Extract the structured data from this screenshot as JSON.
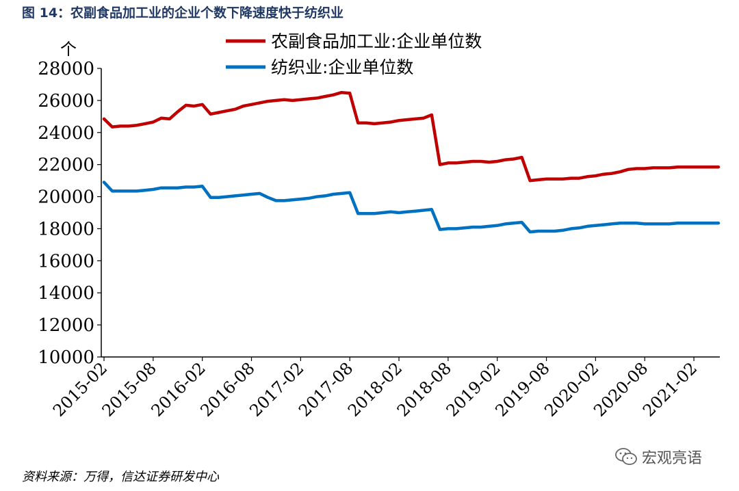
{
  "figure_title": "图 14：农副食品加工业的企业个数下降速度快于纺织业",
  "source_note": "资料来源：万得，信达证券研发中心",
  "watermark": {
    "icon": "wechat-icon",
    "text": "宏观亮语"
  },
  "colors": {
    "title": "#1f3864",
    "series_red": "#c00000",
    "series_blue": "#0070c0"
  },
  "chart_data": {
    "type": "line",
    "ylabel": "个",
    "ylim": [
      10000,
      28000
    ],
    "yticks": [
      10000,
      12000,
      14000,
      16000,
      18000,
      20000,
      22000,
      24000,
      26000,
      28000
    ],
    "ytick_labels": [
      "10000",
      "12000",
      "14000",
      "16000",
      "18000",
      "20000",
      "22000",
      "24000",
      "26000",
      "28000"
    ],
    "xticks": [
      "2015-02",
      "2015-08",
      "2016-02",
      "2016-08",
      "2017-02",
      "2017-08",
      "2018-02",
      "2018-08",
      "2019-02",
      "2019-08",
      "2020-02",
      "2020-08",
      "2021-02"
    ],
    "x_range": [
      "2015-02",
      "2021-05"
    ],
    "legend_position": "top",
    "grid": false,
    "series": [
      {
        "name": "农副食品加工业:企业单位数",
        "color": "#c00000",
        "x": [
          "2015-02",
          "2015-03",
          "2015-04",
          "2015-05",
          "2015-06",
          "2015-07",
          "2015-08",
          "2015-09",
          "2015-10",
          "2015-11",
          "2015-12",
          "2016-01",
          "2016-02",
          "2016-03",
          "2016-04",
          "2016-05",
          "2016-06",
          "2016-07",
          "2016-08",
          "2016-09",
          "2016-10",
          "2016-11",
          "2016-12",
          "2017-01",
          "2017-02",
          "2017-03",
          "2017-04",
          "2017-05",
          "2017-06",
          "2017-07",
          "2017-08",
          "2017-09",
          "2017-10",
          "2017-11",
          "2017-12",
          "2018-01",
          "2018-02",
          "2018-03",
          "2018-04",
          "2018-05",
          "2018-06",
          "2018-07",
          "2018-08",
          "2018-09",
          "2018-10",
          "2018-11",
          "2018-12",
          "2019-01",
          "2019-02",
          "2019-03",
          "2019-04",
          "2019-05",
          "2019-06",
          "2019-07",
          "2019-08",
          "2019-09",
          "2019-10",
          "2019-11",
          "2019-12",
          "2020-01",
          "2020-02",
          "2020-03",
          "2020-04",
          "2020-05",
          "2020-06",
          "2020-07",
          "2020-08",
          "2020-09",
          "2020-10",
          "2020-11",
          "2020-12",
          "2021-01",
          "2021-02",
          "2021-03",
          "2021-04",
          "2021-05"
        ],
        "y": [
          24850,
          24350,
          24400,
          24400,
          24450,
          24550,
          24650,
          24900,
          24850,
          25300,
          25700,
          25650,
          25750,
          25150,
          25250,
          25350,
          25450,
          25650,
          25750,
          25850,
          25950,
          26000,
          26050,
          26000,
          26050,
          26100,
          26150,
          26250,
          26350,
          26500,
          26450,
          24600,
          24600,
          24550,
          24600,
          24650,
          24750,
          24800,
          24850,
          24900,
          25100,
          22000,
          22100,
          22100,
          22150,
          22200,
          22200,
          22150,
          22200,
          22300,
          22350,
          22450,
          21000,
          21050,
          21100,
          21100,
          21100,
          21150,
          21150,
          21250,
          21300,
          21400,
          21450,
          21550,
          21700,
          21750,
          21750,
          21800,
          21800,
          21800,
          21850,
          21850,
          21850,
          21850,
          21850,
          21850
        ]
      },
      {
        "name": "纺织业:企业单位数",
        "color": "#0070c0",
        "x": [
          "2015-02",
          "2015-03",
          "2015-04",
          "2015-05",
          "2015-06",
          "2015-07",
          "2015-08",
          "2015-09",
          "2015-10",
          "2015-11",
          "2015-12",
          "2016-01",
          "2016-02",
          "2016-03",
          "2016-04",
          "2016-05",
          "2016-06",
          "2016-07",
          "2016-08",
          "2016-09",
          "2016-10",
          "2016-11",
          "2016-12",
          "2017-01",
          "2017-02",
          "2017-03",
          "2017-04",
          "2017-05",
          "2017-06",
          "2017-07",
          "2017-08",
          "2017-09",
          "2017-10",
          "2017-11",
          "2017-12",
          "2018-01",
          "2018-02",
          "2018-03",
          "2018-04",
          "2018-05",
          "2018-06",
          "2018-07",
          "2018-08",
          "2018-09",
          "2018-10",
          "2018-11",
          "2018-12",
          "2019-01",
          "2019-02",
          "2019-03",
          "2019-04",
          "2019-05",
          "2019-06",
          "2019-07",
          "2019-08",
          "2019-09",
          "2019-10",
          "2019-11",
          "2019-12",
          "2020-01",
          "2020-02",
          "2020-03",
          "2020-04",
          "2020-05",
          "2020-06",
          "2020-07",
          "2020-08",
          "2020-09",
          "2020-10",
          "2020-11",
          "2020-12",
          "2021-01",
          "2021-02",
          "2021-03",
          "2021-04",
          "2021-05"
        ],
        "y": [
          20900,
          20350,
          20350,
          20350,
          20350,
          20400,
          20450,
          20550,
          20550,
          20550,
          20600,
          20600,
          20650,
          19950,
          19950,
          20000,
          20050,
          20100,
          20150,
          20200,
          19950,
          19750,
          19750,
          19800,
          19850,
          19900,
          20000,
          20050,
          20150,
          20200,
          20250,
          18950,
          18950,
          18950,
          19000,
          19050,
          19000,
          19050,
          19100,
          19150,
          19200,
          17950,
          18000,
          18000,
          18050,
          18100,
          18100,
          18150,
          18200,
          18300,
          18350,
          18400,
          17800,
          17850,
          17850,
          17850,
          17900,
          18000,
          18050,
          18150,
          18200,
          18250,
          18300,
          18350,
          18350,
          18350,
          18300,
          18300,
          18300,
          18300,
          18350,
          18350,
          18350,
          18350,
          18350,
          18350
        ]
      }
    ]
  }
}
